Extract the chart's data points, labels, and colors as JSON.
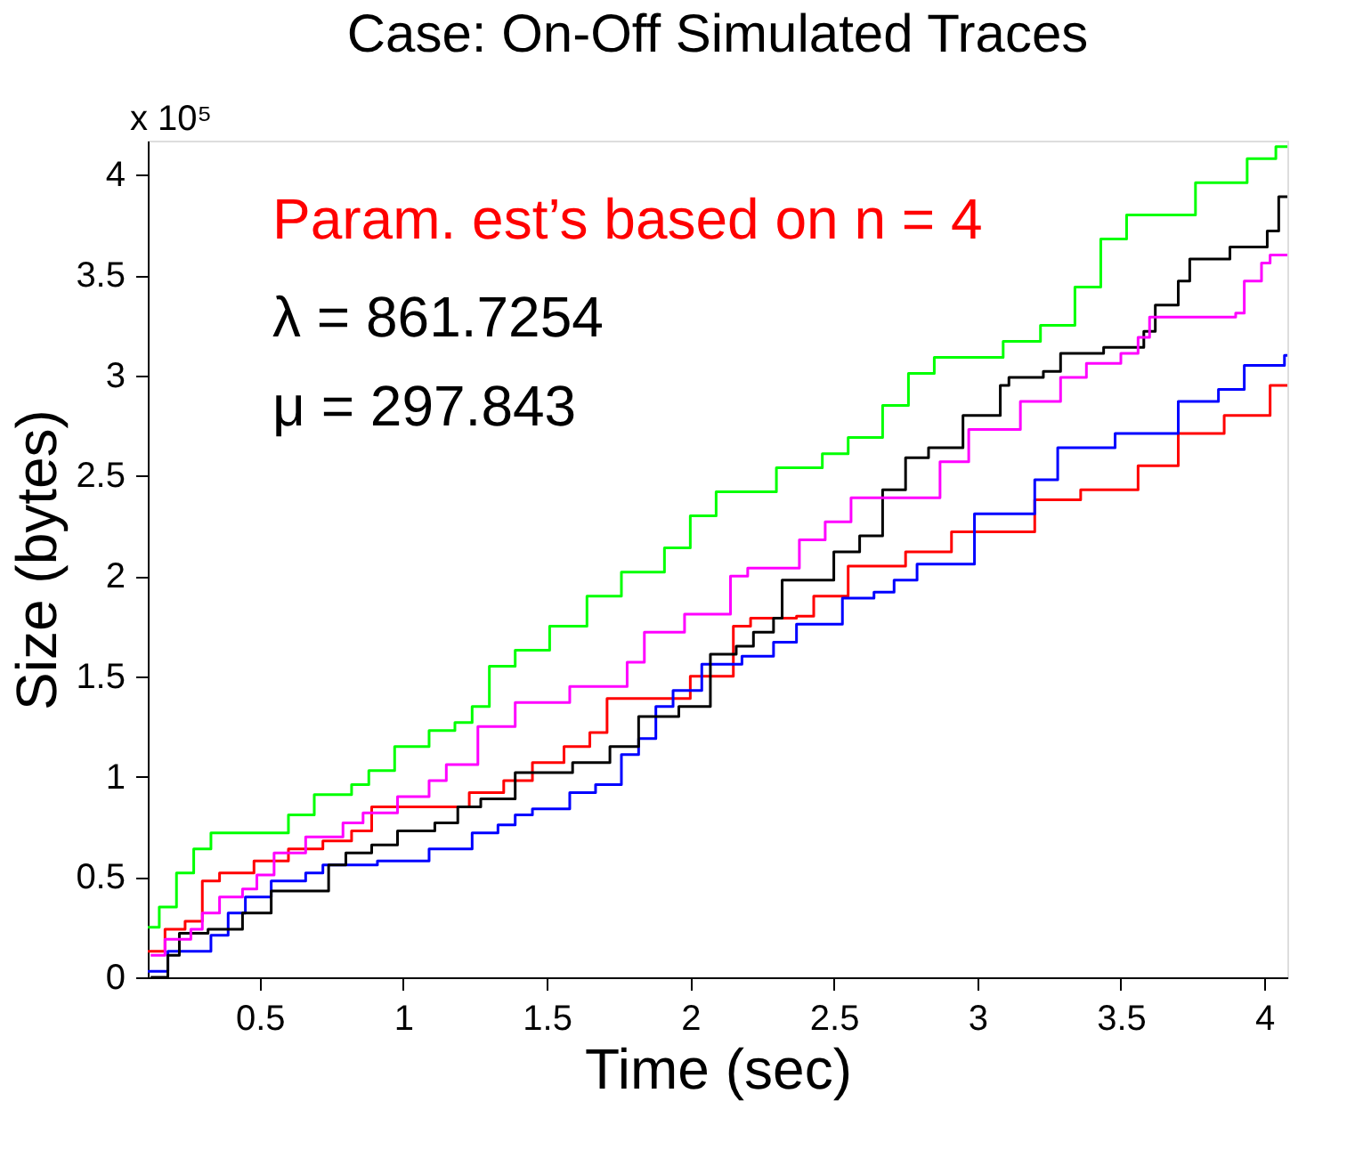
{
  "chart_data": {
    "type": "step",
    "title": "Case: On-Off Simulated Traces",
    "xlabel": "Time (sec)",
    "ylabel": "Size (bytes)",
    "annotations": [
      "Param. est’s based on n = 4",
      "λ = 861.7254",
      "μ = 297.843",
      "x 10⁵"
    ],
    "xlim": [
      0.11,
      4.08
    ],
    "ylim": [
      0,
      4.17
    ],
    "xticks": [
      0.5,
      1,
      1.5,
      2,
      2.5,
      3,
      3.5,
      4
    ],
    "yticks": [
      0,
      0.5,
      1,
      1.5,
      2,
      2.5,
      3,
      3.5,
      4
    ],
    "grid": false,
    "line_style": "solid",
    "marker": "none",
    "series": [
      {
        "color": "#00ff00",
        "x": [
          0.11,
          0.15,
          0.21,
          0.27,
          0.33,
          0.59,
          0.6,
          0.69,
          0.82,
          0.88,
          0.97,
          1.09,
          1.18,
          1.24,
          1.3,
          1.39,
          1.51,
          1.64,
          1.76,
          1.91,
          2.0,
          2.09,
          2.3,
          2.46,
          2.55,
          2.67,
          2.76,
          2.85,
          3.09,
          3.22,
          3.34,
          3.43,
          3.52,
          3.76,
          3.94,
          4.04,
          4.08
        ],
        "values": [
          0.25,
          0.35,
          0.52,
          0.64,
          0.72,
          0.72,
          0.81,
          0.91,
          0.96,
          1.03,
          1.15,
          1.23,
          1.27,
          1.35,
          1.55,
          1.63,
          1.75,
          1.9,
          2.02,
          2.14,
          2.3,
          2.42,
          2.54,
          2.61,
          2.69,
          2.85,
          3.01,
          3.09,
          3.17,
          3.25,
          3.44,
          3.68,
          3.8,
          3.96,
          4.08,
          4.14,
          4.14
        ]
      },
      {
        "color": "#ff0000",
        "x": [
          0.11,
          0.17,
          0.24,
          0.3,
          0.36,
          0.48,
          0.6,
          0.72,
          0.82,
          0.89,
          1.15,
          1.23,
          1.35,
          1.45,
          1.56,
          1.65,
          1.71,
          1.9,
          2.0,
          2.15,
          2.21,
          2.37,
          2.43,
          2.55,
          2.75,
          2.91,
          3.2,
          3.36,
          3.56,
          3.7,
          3.86,
          4.02,
          4.08
        ],
        "values": [
          0.13,
          0.24,
          0.28,
          0.48,
          0.52,
          0.58,
          0.64,
          0.68,
          0.73,
          0.85,
          0.85,
          0.92,
          0.98,
          1.07,
          1.15,
          1.22,
          1.39,
          1.39,
          1.5,
          1.75,
          1.79,
          1.8,
          1.9,
          2.05,
          2.12,
          2.22,
          2.38,
          2.43,
          2.55,
          2.71,
          2.8,
          2.95,
          2.95
        ]
      },
      {
        "color": "#0000ff",
        "x": [
          0.11,
          0.18,
          0.33,
          0.39,
          0.45,
          0.54,
          0.66,
          0.72,
          0.91,
          1.09,
          1.24,
          1.33,
          1.39,
          1.45,
          1.58,
          1.67,
          1.76,
          1.82,
          1.88,
          1.94,
          2.04,
          2.18,
          2.29,
          2.37,
          2.53,
          2.64,
          2.71,
          2.79,
          2.99,
          3.2,
          3.28,
          3.48,
          3.7,
          3.84,
          3.93,
          4.07,
          4.08
        ],
        "values": [
          0.03,
          0.13,
          0.21,
          0.32,
          0.4,
          0.48,
          0.52,
          0.56,
          0.58,
          0.64,
          0.72,
          0.76,
          0.81,
          0.84,
          0.92,
          0.96,
          1.11,
          1.19,
          1.35,
          1.43,
          1.56,
          1.6,
          1.67,
          1.76,
          1.89,
          1.92,
          1.98,
          2.06,
          2.31,
          2.48,
          2.64,
          2.71,
          2.87,
          2.93,
          3.05,
          3.1,
          3.1
        ]
      },
      {
        "color": "#000000",
        "x": [
          0.12,
          0.18,
          0.22,
          0.32,
          0.44,
          0.54,
          0.74,
          0.8,
          0.89,
          0.98,
          1.11,
          1.19,
          1.27,
          1.39,
          1.59,
          1.72,
          1.82,
          1.96,
          2.07,
          2.16,
          2.22,
          2.29,
          2.32,
          2.5,
          2.59,
          2.67,
          2.75,
          2.83,
          2.95,
          3.08,
          3.11,
          3.23,
          3.29,
          3.44,
          3.58,
          3.62,
          3.7,
          3.74,
          3.88,
          4.01,
          4.05,
          4.08
        ],
        "values": [
          0.0,
          0.11,
          0.22,
          0.24,
          0.32,
          0.43,
          0.56,
          0.62,
          0.66,
          0.73,
          0.77,
          0.85,
          0.89,
          1.02,
          1.07,
          1.15,
          1.3,
          1.35,
          1.61,
          1.65,
          1.72,
          1.79,
          1.98,
          2.12,
          2.2,
          2.43,
          2.59,
          2.64,
          2.8,
          2.95,
          2.99,
          3.02,
          3.11,
          3.14,
          3.22,
          3.35,
          3.47,
          3.58,
          3.64,
          3.72,
          3.89,
          3.89
        ]
      },
      {
        "color": "#ff00ff",
        "x": [
          0.12,
          0.17,
          0.26,
          0.3,
          0.36,
          0.44,
          0.49,
          0.55,
          0.66,
          0.79,
          0.86,
          0.98,
          1.09,
          1.15,
          1.26,
          1.39,
          1.58,
          1.78,
          1.84,
          1.98,
          2.14,
          2.2,
          2.38,
          2.47,
          2.56,
          2.87,
          2.97,
          3.15,
          3.29,
          3.38,
          3.5,
          3.56,
          3.6,
          3.9,
          3.93,
          3.99,
          4.02,
          4.08
        ],
        "values": [
          0.11,
          0.19,
          0.24,
          0.32,
          0.4,
          0.44,
          0.51,
          0.62,
          0.7,
          0.77,
          0.82,
          0.9,
          0.98,
          1.06,
          1.25,
          1.37,
          1.45,
          1.57,
          1.72,
          1.81,
          2.0,
          2.04,
          2.18,
          2.27,
          2.39,
          2.57,
          2.73,
          2.87,
          2.99,
          3.06,
          3.11,
          3.19,
          3.29,
          3.31,
          3.47,
          3.56,
          3.6,
          3.6
        ]
      }
    ]
  }
}
